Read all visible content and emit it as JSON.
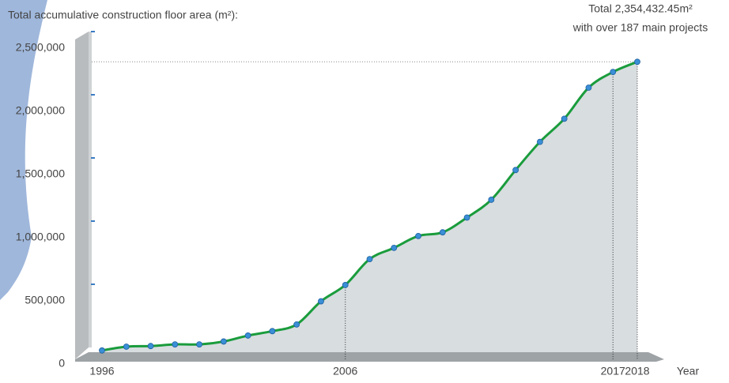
{
  "chart_data": {
    "type": "area",
    "title": "Total accumulative construction floor area (m²):",
    "x_label": "Year",
    "annotations": [
      "Total 2,354,432.45m²",
      "with over 187 main projects"
    ],
    "x": [
      1996,
      1997,
      1998,
      1999,
      2000,
      2001,
      2002,
      2003,
      2004,
      2005,
      2006,
      2007,
      2008,
      2009,
      2010,
      2011,
      2012,
      2013,
      2014,
      2015,
      2016,
      2017,
      2018
    ],
    "values": [
      70000,
      100000,
      105000,
      118000,
      118000,
      141000,
      188000,
      223000,
      276000,
      459000,
      588000,
      793000,
      882000,
      976000,
      1005000,
      1122000,
      1263000,
      1498000,
      1721000,
      1904000,
      2150000,
      2274000,
      2354432.45
    ],
    "xlim": [
      1996,
      2018
    ],
    "xticks": [
      1996,
      2006,
      2017,
      2018
    ],
    "ylim": [
      0,
      2500000
    ],
    "yticks": [
      0,
      {
        "value": 500000,
        "label": "500,000"
      },
      {
        "value": 1000000,
        "label": "1,000,000"
      },
      {
        "value": 1500000,
        "label": "1,500,000"
      },
      {
        "value": 2000000,
        "label": "2,000,000"
      },
      {
        "value": 2500000,
        "label": "2,500,000"
      }
    ],
    "line_color": "#1a9c3c",
    "fill_color": "#d8dde0",
    "point_color": "#3a8fd6"
  }
}
